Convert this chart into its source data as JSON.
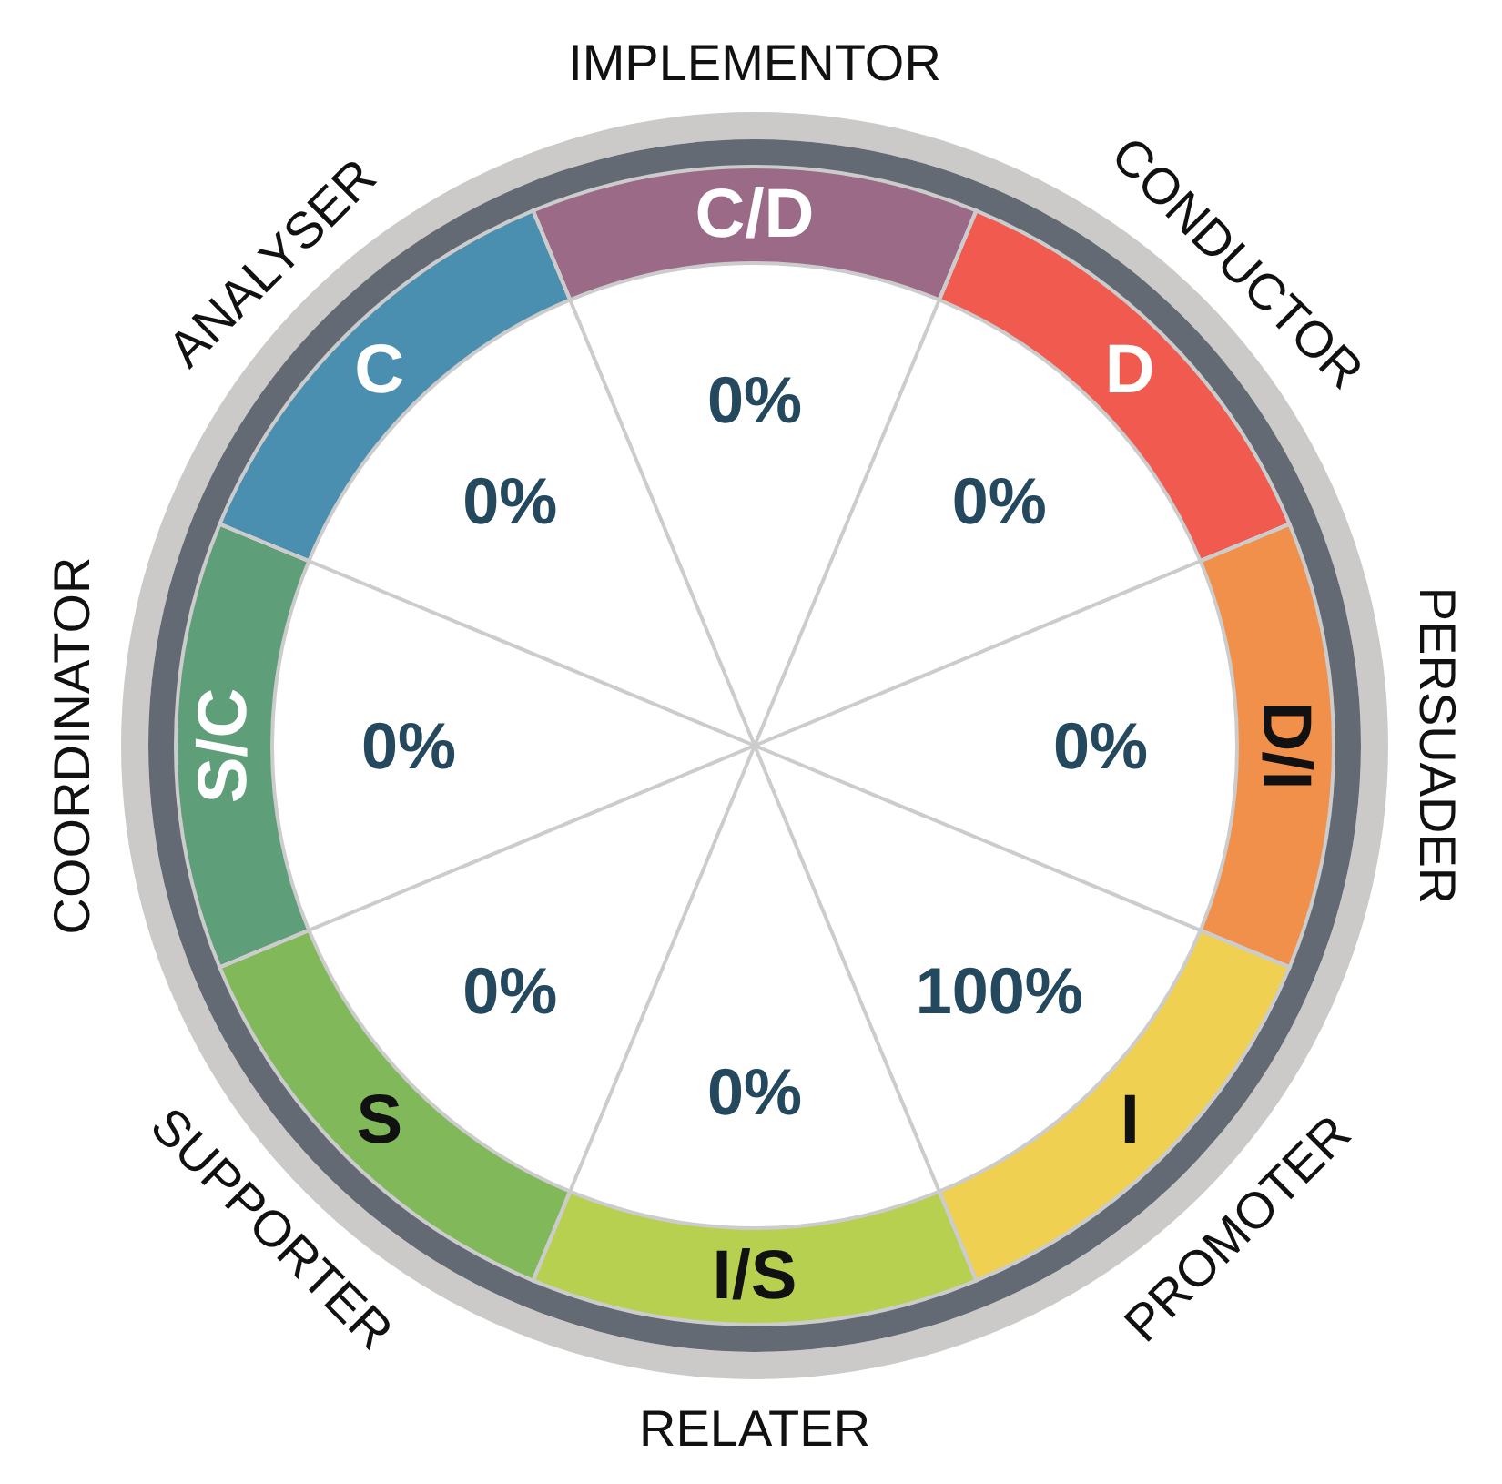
{
  "chart_data": {
    "type": "other",
    "categories": [
      "C/D",
      "D",
      "D/I",
      "I",
      "I/S",
      "S",
      "S/C",
      "C"
    ],
    "values": [
      0,
      0,
      0,
      100,
      0,
      0,
      0,
      0
    ],
    "value_labels": [
      "0%",
      "0%",
      "0%",
      "100%",
      "0%",
      "0%",
      "0%",
      "0%"
    ],
    "colors": [
      "#9a6a86",
      "#f05a4f",
      "#f0904a",
      "#f0d050",
      "#b8d050",
      "#80b85a",
      "#5e9e78",
      "#4a8fb0"
    ],
    "annotations": [
      {
        "text": "IMPLEMENTOR",
        "x": "C/D"
      },
      {
        "text": "CONDUCTOR",
        "x": "D"
      },
      {
        "text": "PERSUADER",
        "x": "D/I"
      },
      {
        "text": "PROMOTER",
        "x": "I"
      },
      {
        "text": "RELATER",
        "x": "I/S"
      },
      {
        "text": "SUPPORTER",
        "x": "S"
      },
      {
        "text": "COORDINATOR",
        "x": "S/C"
      },
      {
        "text": "ANALYSER",
        "x": "C"
      }
    ]
  }
}
